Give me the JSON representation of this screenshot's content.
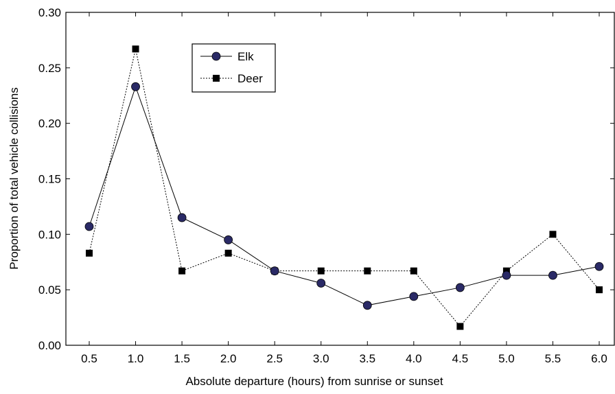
{
  "chart_data": {
    "type": "line",
    "xlabel": "Absolute departure (hours) from sunrise or sunset",
    "ylabel": "Proportion of total vehicle collisions",
    "x": [
      "0.5",
      "1.0",
      "1.5",
      "2.0",
      "2.5",
      "3.0",
      "3.5",
      "4.0",
      "4.5",
      "5.0",
      "5.5",
      "6.0"
    ],
    "y_ticks": [
      "0.00",
      "0.05",
      "0.10",
      "0.15",
      "0.20",
      "0.25",
      "0.30"
    ],
    "ylim": [
      0,
      0.3
    ],
    "grid": false,
    "legend_position": "top-left",
    "series": [
      {
        "name": "Elk",
        "marker": "circle",
        "line_style": "solid",
        "color": "#2a2a66",
        "values": [
          0.107,
          0.233,
          0.115,
          0.095,
          0.067,
          0.056,
          0.036,
          0.044,
          0.052,
          0.063,
          0.063,
          0.071
        ]
      },
      {
        "name": "Deer",
        "marker": "square",
        "line_style": "dotted",
        "color": "#000000",
        "values": [
          0.083,
          0.267,
          0.067,
          0.083,
          0.067,
          0.067,
          0.067,
          0.067,
          0.017,
          0.067,
          0.1,
          0.05
        ]
      }
    ]
  }
}
